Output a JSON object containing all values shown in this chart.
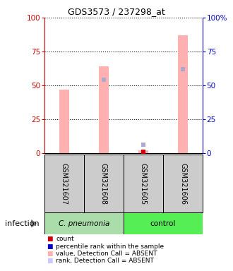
{
  "title": "GDS3573 / 237298_at",
  "samples": [
    "GSM321607",
    "GSM321608",
    "GSM321605",
    "GSM321606"
  ],
  "value_bars": [
    47,
    64,
    2,
    87
  ],
  "rank_markers": [
    null,
    54,
    6,
    62
  ],
  "value_bar_color": "#ffb0b0",
  "rank_marker_color": "#aaaacc",
  "count_color": "#cc0000",
  "left_axis_color": "#cc0000",
  "right_axis_color": "#0000cc",
  "ylim": [
    0,
    100
  ],
  "yticks": [
    0,
    25,
    50,
    75,
    100
  ],
  "sample_bg_color": "#cccccc",
  "group1_color": "#aaddaa",
  "group2_color": "#55ee55",
  "legend_colors": [
    "#cc0000",
    "#0000cc",
    "#ffb0b0",
    "#c8c8ff"
  ],
  "legend_labels": [
    "count",
    "percentile rank within the sample",
    "value, Detection Call = ABSENT",
    "rank, Detection Call = ABSENT"
  ],
  "factor_label": "infection"
}
